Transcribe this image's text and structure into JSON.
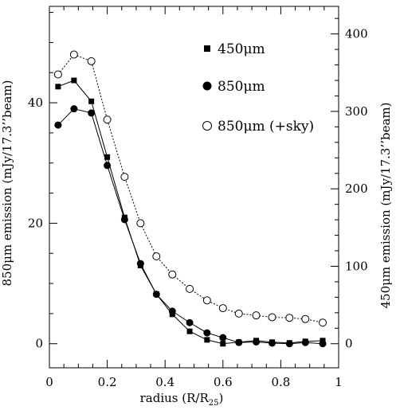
{
  "chart_data": {
    "type": "scatter",
    "xlabel": "radius (R/R",
    "xlabel_sub": "25",
    "xlabel_close": ")",
    "ylabel_left": "850μm emission (mJy/17.3’’beam)",
    "ylabel_right": "450μm emission (mJy/17.3’’beam)",
    "xlim": [
      0,
      1
    ],
    "ylim_left": [
      -4,
      56
    ],
    "ylim_right": [
      -31.1,
      435.6
    ],
    "x_ticks": [
      "0",
      "0.2",
      "0.4",
      "0.6",
      "0.8",
      "1"
    ],
    "x_tick_values": [
      0,
      0.2,
      0.4,
      0.6,
      0.8,
      1
    ],
    "y_left_ticks": [
      "0",
      "20",
      "40"
    ],
    "y_left_tick_values": [
      0,
      20,
      40
    ],
    "y_right_ticks": [
      "0",
      "100",
      "200",
      "300",
      "400"
    ],
    "y_right_tick_values": [
      0,
      100,
      200,
      300,
      400
    ],
    "legend_position": "top-right",
    "series": [
      {
        "name": "450μm",
        "marker": "square-filled",
        "line": "solid",
        "axis": "right",
        "x": [
          0.03,
          0.085,
          0.145,
          0.2,
          0.26,
          0.315,
          0.37,
          0.425,
          0.485,
          0.545,
          0.6,
          0.655,
          0.715,
          0.77,
          0.83,
          0.885,
          0.945
        ],
        "values": [
          332,
          340,
          313,
          241,
          163,
          101,
          64,
          38,
          16,
          5,
          0,
          2,
          4,
          2,
          1,
          3,
          4
        ]
      },
      {
        "name": "850μm",
        "marker": "circle-filled",
        "line": "solid",
        "axis": "left",
        "x": [
          0.03,
          0.085,
          0.145,
          0.2,
          0.26,
          0.315,
          0.37,
          0.425,
          0.485,
          0.545,
          0.6,
          0.655,
          0.715,
          0.77,
          0.83,
          0.885,
          0.945
        ],
        "values": [
          36.3,
          39.0,
          38.3,
          29.6,
          20.6,
          13.3,
          8.2,
          5.4,
          3.5,
          1.8,
          1.0,
          0.2,
          0.3,
          0.1,
          0.0,
          0.2,
          0.0
        ]
      },
      {
        "name": "850μm (+sky)",
        "marker": "circle-open",
        "line": "dotted",
        "axis": "left",
        "x": [
          0.03,
          0.085,
          0.145,
          0.2,
          0.26,
          0.315,
          0.37,
          0.425,
          0.485,
          0.545,
          0.6,
          0.655,
          0.715,
          0.77,
          0.83,
          0.885,
          0.945
        ],
        "values": [
          44.7,
          48.0,
          46.9,
          37.2,
          27.7,
          20.0,
          14.5,
          11.5,
          9.1,
          7.2,
          5.9,
          5.0,
          4.7,
          4.4,
          4.3,
          4.1,
          3.5
        ]
      }
    ]
  }
}
